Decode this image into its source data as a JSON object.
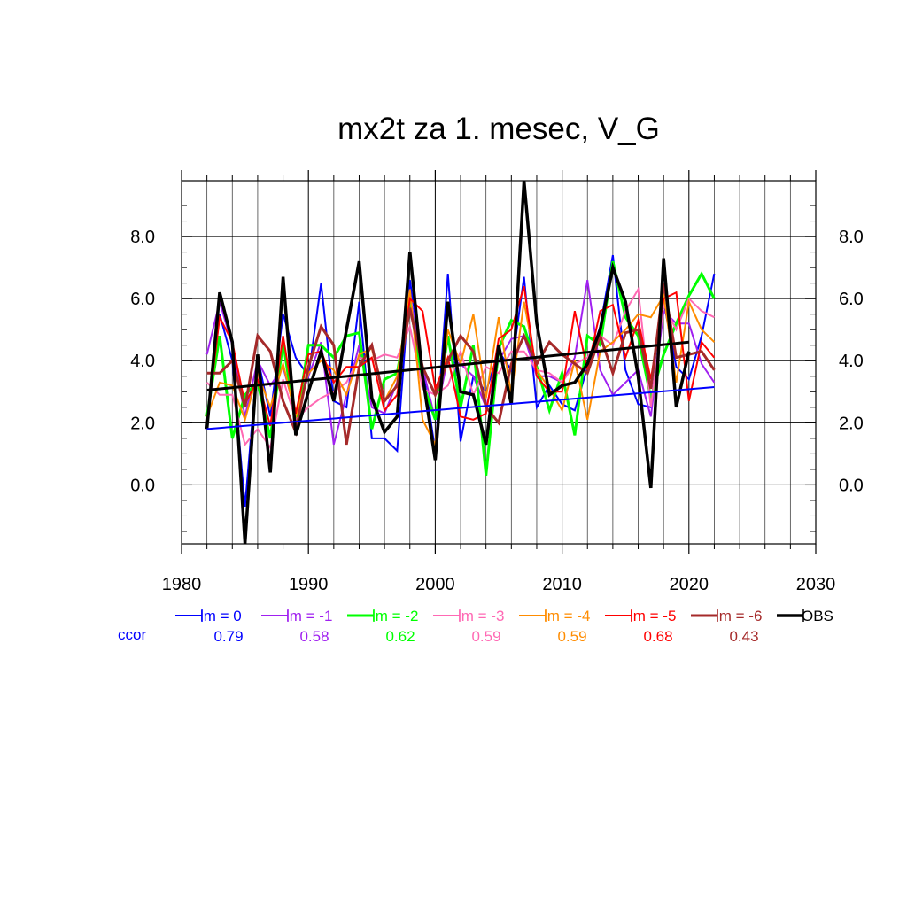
{
  "chart_data": {
    "type": "line",
    "title": "mx2t za 1. mesec, V_G",
    "xlabel": "",
    "ylabel": "",
    "xlim": [
      1980,
      2030
    ],
    "ylim": [
      -1.9,
      9.8
    ],
    "x_ticks": [
      1980,
      1990,
      2000,
      2010,
      2020,
      2030
    ],
    "x_tick_labels": [
      "1980",
      "1990",
      "2000",
      "2010",
      "2020",
      "2030"
    ],
    "y_ticks": [
      0,
      2,
      4,
      6,
      8
    ],
    "y_tick_labels": [
      "0.0",
      "2.0",
      "4.0",
      "6.0",
      "8.0"
    ],
    "grid": true,
    "legend_position": "bottom",
    "ccor_label": "ccor",
    "series": [
      {
        "name": "lm = 0",
        "color": "#0000ff",
        "width": 2,
        "ccor": "0.79",
        "x": [
          1982,
          1983,
          1984,
          1985,
          1986,
          1987,
          1988,
          1989,
          1990,
          1991,
          1992,
          1993,
          1994,
          1995,
          1996,
          1997,
          1998,
          1999,
          2000,
          2001,
          2002,
          2003,
          2004,
          2005,
          2006,
          2007,
          2008,
          2009,
          2010,
          2011,
          2012,
          2013,
          2014,
          2015,
          2016,
          2017,
          2018,
          2019,
          2020,
          2021,
          2022
        ],
        "y": [
          1.8,
          5.5,
          4.0,
          -0.7,
          4.1,
          2.2,
          5.5,
          4.1,
          3.5,
          6.5,
          2.7,
          2.5,
          5.9,
          1.5,
          1.5,
          1.1,
          6.6,
          3.8,
          1.1,
          6.8,
          1.4,
          3.5,
          3.0,
          4.3,
          3.7,
          6.7,
          2.5,
          3.2,
          2.6,
          2.4,
          3.8,
          5.1,
          7.4,
          3.7,
          2.6,
          2.5,
          5.9,
          3.8,
          3.4,
          4.8,
          6.8
        ]
      },
      {
        "name": "lm = -1",
        "color": "#a020f0",
        "width": 2,
        "ccor": "0.58",
        "x": [
          1982,
          1983,
          1984,
          1985,
          1986,
          1987,
          1988,
          1989,
          1990,
          1991,
          1992,
          1993,
          1994,
          1995,
          1996,
          1997,
          1998,
          1999,
          2000,
          2001,
          2002,
          2003,
          2004,
          2005,
          2006,
          2007,
          2008,
          2009,
          2010,
          2011,
          2012,
          2013,
          2014,
          2015,
          2016,
          2017,
          2018,
          2019,
          2020,
          2021,
          2022
        ],
        "y": [
          4.2,
          5.9,
          4.5,
          2.2,
          4.0,
          3.2,
          3.8,
          2.3,
          3.5,
          4.6,
          1.3,
          2.9,
          4.5,
          2.5,
          2.3,
          3.3,
          6.1,
          3.8,
          2.1,
          4.1,
          3.9,
          3.5,
          2.5,
          4.0,
          4.7,
          4.8,
          3.5,
          3.5,
          3.3,
          4.1,
          6.6,
          3.7,
          2.9,
          3.3,
          3.7,
          2.2,
          5.6,
          5.2,
          5.2,
          3.9,
          3.3
        ]
      },
      {
        "name": "lm = -2",
        "color": "#00ff00",
        "width": 3,
        "ccor": "0.62",
        "x": [
          1982,
          1983,
          1984,
          1985,
          1986,
          1987,
          1988,
          1989,
          1990,
          1991,
          1992,
          1993,
          1994,
          1995,
          1996,
          1997,
          1998,
          1999,
          2000,
          2001,
          2002,
          2003,
          2004,
          2005,
          2006,
          2007,
          2008,
          2009,
          2010,
          2011,
          2012,
          2013,
          2014,
          2015,
          2016,
          2017,
          2018,
          2019,
          2020,
          2021,
          2022
        ],
        "y": [
          2.2,
          4.8,
          1.5,
          2.9,
          3.3,
          1.5,
          4.6,
          1.9,
          4.5,
          4.5,
          4.1,
          4.8,
          4.9,
          1.8,
          3.4,
          3.6,
          5.9,
          3.3,
          2.1,
          4.8,
          2.5,
          4.5,
          0.3,
          4.4,
          5.3,
          5.1,
          3.8,
          2.4,
          3.6,
          1.6,
          4.8,
          4.5,
          7.2,
          5.4,
          4.8,
          2.8,
          4.2,
          5.2,
          6.1,
          6.8,
          6.0
        ]
      },
      {
        "name": "lm = -3",
        "color": "#ff69b4",
        "width": 2,
        "ccor": "0.59",
        "x": [
          1982,
          1983,
          1984,
          1985,
          1986,
          1987,
          1988,
          1989,
          1990,
          1991,
          1992,
          1993,
          1994,
          1995,
          1996,
          1997,
          1998,
          1999,
          2000,
          2001,
          2002,
          2003,
          2004,
          2005,
          2006,
          2007,
          2008,
          2009,
          2010,
          2011,
          2012,
          2013,
          2014,
          2015,
          2016,
          2017,
          2018,
          2019,
          2020,
          2021,
          2022
        ],
        "y": [
          3.3,
          2.9,
          2.9,
          1.3,
          1.8,
          1.2,
          3.4,
          2.1,
          2.5,
          2.8,
          3.0,
          3.3,
          4.1,
          4.0,
          4.2,
          4.1,
          5.1,
          3.1,
          2.9,
          3.2,
          4.3,
          2.9,
          3.8,
          3.6,
          4.3,
          4.3,
          3.7,
          3.6,
          3.3,
          3.9,
          4.1,
          4.8,
          4.5,
          5.6,
          6.3,
          2.5,
          5.8,
          5.0,
          6.0,
          5.6,
          5.4
        ]
      },
      {
        "name": "lm = -4",
        "color": "#ff8c00",
        "width": 2,
        "ccor": "0.59",
        "x": [
          1982,
          1983,
          1984,
          1985,
          1986,
          1987,
          1988,
          1989,
          1990,
          1991,
          1992,
          1993,
          1994,
          1995,
          1996,
          1997,
          1998,
          1999,
          2000,
          2001,
          2002,
          2003,
          2004,
          2005,
          2006,
          2007,
          2008,
          2009,
          2010,
          2011,
          2012,
          2013,
          2014,
          2015,
          2016,
          2017,
          2018,
          2019,
          2020,
          2021,
          2022
        ],
        "y": [
          2.2,
          3.3,
          3.2,
          2.1,
          3.6,
          2.5,
          3.9,
          2.2,
          3.6,
          4.0,
          3.7,
          2.9,
          4.2,
          4.4,
          2.7,
          3.5,
          6.3,
          2.1,
          1.3,
          5.0,
          3.9,
          5.5,
          2.8,
          5.4,
          2.9,
          5.9,
          3.7,
          3.1,
          2.4,
          4.0,
          2.1,
          4.3,
          4.6,
          5.0,
          5.5,
          5.4,
          6.1,
          3.3,
          5.9,
          5.0,
          4.6
        ]
      },
      {
        "name": "lm = -5",
        "color": "#ff0000",
        "width": 2,
        "ccor": "0.68",
        "x": [
          1982,
          1983,
          1984,
          1985,
          1986,
          1987,
          1988,
          1989,
          1990,
          1991,
          1992,
          1993,
          1994,
          1995,
          1996,
          1997,
          1998,
          1999,
          2000,
          2001,
          2002,
          2003,
          2004,
          2005,
          2006,
          2007,
          2008,
          2009,
          2010,
          2011,
          2012,
          2013,
          2014,
          2015,
          2016,
          2017,
          2018,
          2019,
          2020,
          2021,
          2022
        ],
        "y": [
          2.0,
          5.4,
          4.6,
          2.6,
          3.4,
          1.9,
          4.8,
          2.3,
          4.2,
          4.3,
          3.3,
          3.8,
          3.8,
          4.1,
          2.4,
          2.9,
          6.0,
          5.6,
          3.1,
          4.1,
          2.2,
          2.1,
          2.3,
          4.7,
          5.0,
          6.4,
          3.5,
          3.0,
          3.0,
          5.6,
          3.7,
          5.6,
          5.8,
          4.1,
          5.3,
          3.4,
          6.0,
          6.2,
          2.7,
          4.6,
          4.1
        ]
      },
      {
        "name": "lm = -6",
        "color": "#a52a2a",
        "width": 3,
        "ccor": "0.43",
        "x": [
          1982,
          1983,
          1984,
          1985,
          1986,
          1987,
          1988,
          1989,
          1990,
          1991,
          1992,
          1993,
          1994,
          1995,
          1996,
          1997,
          1998,
          1999,
          2000,
          2001,
          2002,
          2003,
          2004,
          2005,
          2006,
          2007,
          2008,
          2009,
          2010,
          2011,
          2012,
          2013,
          2014,
          2015,
          2016,
          2017,
          2018,
          2019,
          2020,
          2021,
          2022
        ],
        "y": [
          3.6,
          3.6,
          4.0,
          2.5,
          4.8,
          4.3,
          2.7,
          1.7,
          3.8,
          5.1,
          4.5,
          1.3,
          3.8,
          4.5,
          2.7,
          3.2,
          5.7,
          3.8,
          2.9,
          4.0,
          4.8,
          4.3,
          2.5,
          2.0,
          3.9,
          4.8,
          3.9,
          4.6,
          4.2,
          3.9,
          3.6,
          4.8,
          3.6,
          4.9,
          5.0,
          3.1,
          6.5,
          4.1,
          4.2,
          4.3,
          3.7
        ]
      },
      {
        "name": "OBS",
        "color": "#000000",
        "width": 3.5,
        "ccor": "",
        "x": [
          1982,
          1983,
          1984,
          1985,
          1986,
          1987,
          1988,
          1989,
          1990,
          1991,
          1992,
          1993,
          1994,
          1995,
          1996,
          1997,
          1998,
          1999,
          2000,
          2001,
          2002,
          2003,
          2004,
          2005,
          2006,
          2007,
          2008,
          2009,
          2010,
          2011,
          2012,
          2013,
          2014,
          2015,
          2016,
          2017,
          2018,
          2019,
          2020
        ],
        "y": [
          1.8,
          6.2,
          4.6,
          -1.9,
          4.2,
          0.4,
          6.7,
          1.6,
          3.0,
          4.3,
          2.7,
          5.0,
          7.2,
          2.8,
          1.7,
          2.2,
          7.5,
          3.5,
          0.8,
          5.9,
          3.0,
          2.9,
          1.3,
          4.5,
          2.6,
          9.8,
          5.2,
          2.9,
          3.2,
          3.3,
          3.9,
          5.0,
          7.0,
          5.9,
          3.5,
          -0.1,
          7.3,
          2.5,
          4.3
        ]
      }
    ],
    "trend_lines": [
      {
        "name": "OBS trend",
        "color": "#000000",
        "width": 3,
        "x": [
          1982,
          2020
        ],
        "y": [
          3.05,
          4.6
        ]
      },
      {
        "name": "lm = 0 trend",
        "color": "#0000ff",
        "width": 2,
        "x": [
          1982,
          2022
        ],
        "y": [
          1.8,
          3.15
        ]
      }
    ]
  }
}
